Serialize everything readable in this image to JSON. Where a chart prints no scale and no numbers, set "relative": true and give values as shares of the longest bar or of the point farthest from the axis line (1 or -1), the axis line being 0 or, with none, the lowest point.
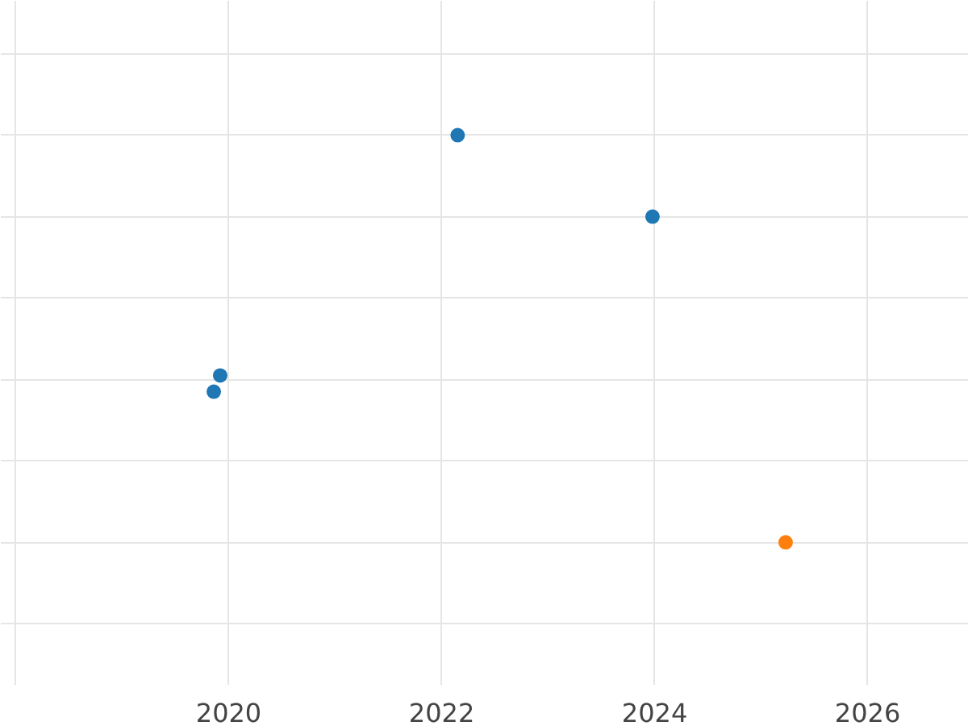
{
  "chart_data": {
    "type": "scatter",
    "relative": true,
    "xlim": [
      2017.86,
      2026.95
    ],
    "xticks": [
      {
        "value": 2018,
        "label": null
      },
      2020,
      2022,
      2024,
      2026
    ],
    "grid": true,
    "marker": "circle",
    "series": [
      {
        "color": "#1f77b4",
        "x": [
          2022.15,
          2023.98,
          2019.92,
          2019.86
        ],
        "values": [
          1,
          0.8,
          0.41,
          0.37
        ]
      },
      {
        "color": "#ff7f0e",
        "x": [
          2025.23
        ],
        "values": [
          0
        ]
      }
    ]
  }
}
